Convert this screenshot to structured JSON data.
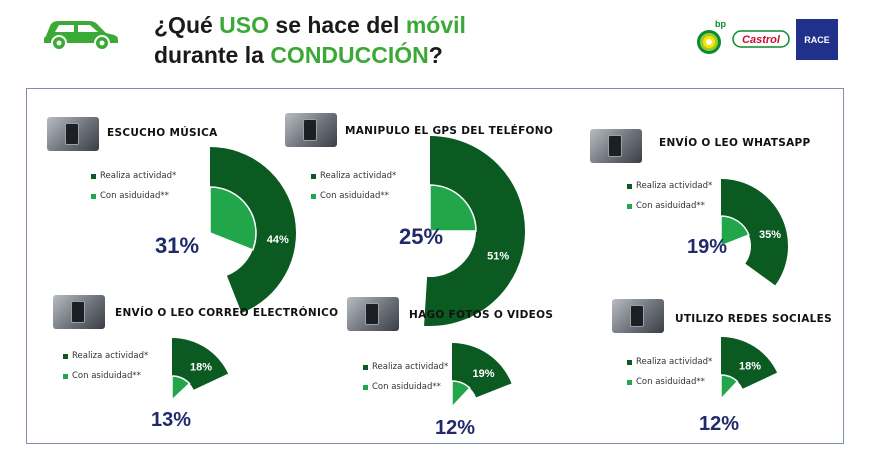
{
  "header": {
    "title_line1_a": "¿Qué ",
    "title_line1_b": "USO",
    "title_line1_c": " se hace del ",
    "title_line1_d": "móvil",
    "title_line2_a": "durante la ",
    "title_line2_b": "CONDUCCIÓN",
    "title_line2_c": "?",
    "car_icon": "car-icon",
    "accent_color": "#3aa935"
  },
  "logos": {
    "bp_text": "bp",
    "castrol_text": "Castrol",
    "race_text": "RACE"
  },
  "colors": {
    "dark_green": "#0b5a22",
    "light_green": "#22a64a",
    "percent_navy": "#1f2a6b"
  },
  "legend": {
    "realiza": "Realiza actividad*",
    "asiduidad": "Con asiduidad**"
  },
  "chart_data": [
    {
      "type": "pie",
      "title": "ESCUCHO MÚSICA",
      "thumbnail": "music-player-thumbnail",
      "series": [
        {
          "name": "Realiza actividad*",
          "values": [
            44
          ],
          "label": "44%"
        },
        {
          "name": "Con asiduidad**",
          "values": [
            31
          ],
          "label": "31%"
        }
      ]
    },
    {
      "type": "pie",
      "title": "MANIPULO EL GPS DEL TELÉFONO",
      "thumbnail": "gps-phone-thumbnail",
      "series": [
        {
          "name": "Realiza actividad*",
          "values": [
            51
          ],
          "label": "51%"
        },
        {
          "name": "Con asiduidad**",
          "values": [
            25
          ],
          "label": "25%"
        }
      ]
    },
    {
      "type": "pie",
      "title": "ENVÍO O LEO WHATSAPP",
      "thumbnail": "whatsapp-phone-thumbnail",
      "series": [
        {
          "name": "Realiza actividad*",
          "values": [
            35
          ],
          "label": "35%"
        },
        {
          "name": "Con asiduidad**",
          "values": [
            19
          ],
          "label": "19%"
        }
      ]
    },
    {
      "type": "pie",
      "title": "ENVÍO O LEO CORREO ELECTRÓNICO",
      "thumbnail": "email-phone-thumbnail",
      "series": [
        {
          "name": "Realiza actividad*",
          "values": [
            18
          ],
          "label": "18%"
        },
        {
          "name": "Con asiduidad**",
          "values": [
            13
          ],
          "label": "13%"
        }
      ]
    },
    {
      "type": "pie",
      "title": "HAGO FOTOS O VIDEOS",
      "thumbnail": "photo-camera-thumbnail",
      "series": [
        {
          "name": "Realiza actividad*",
          "values": [
            19
          ],
          "label": "19%"
        },
        {
          "name": "Con asiduidad**",
          "values": [
            12
          ],
          "label": "12%"
        }
      ]
    },
    {
      "type": "pie",
      "title": "UTILIZO REDES SOCIALES",
      "thumbnail": "social-media-thumbnail",
      "series": [
        {
          "name": "Realiza actividad*",
          "values": [
            18
          ],
          "label": "18%"
        },
        {
          "name": "Con asiduidad**",
          "values": [
            12
          ],
          "label": "12%"
        }
      ]
    }
  ]
}
